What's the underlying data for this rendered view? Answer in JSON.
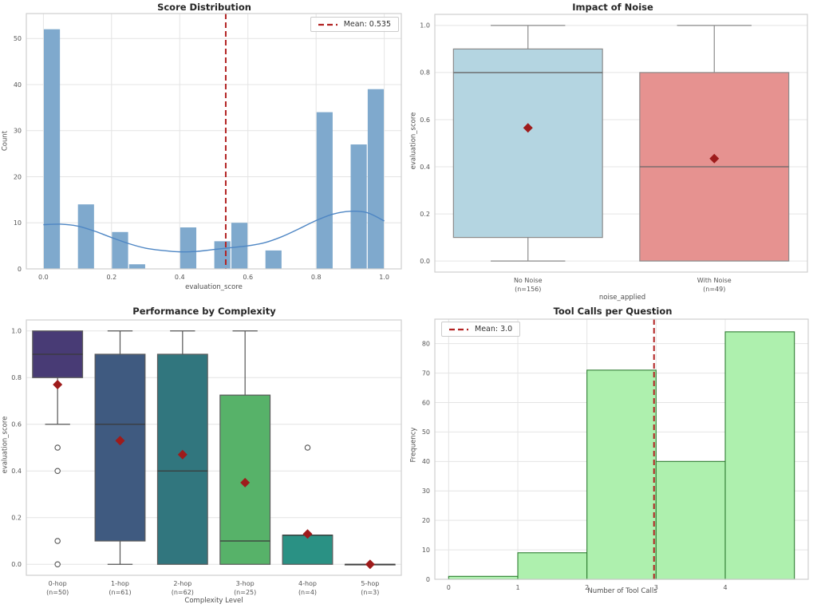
{
  "figure_background": "#ffffff",
  "chart_data": [
    {
      "type": "histogram",
      "title": "Score Distribution",
      "xlabel": "evaluation_score",
      "ylabel": "Count",
      "legend": {
        "label": "Mean: 0.535",
        "position": "upper right"
      },
      "mean_line_x": 0.535,
      "bin_width": 0.05,
      "bins": [
        {
          "x0": 0.0,
          "count": 52
        },
        {
          "x0": 0.1,
          "count": 14
        },
        {
          "x0": 0.2,
          "count": 8
        },
        {
          "x0": 0.25,
          "count": 1
        },
        {
          "x0": 0.4,
          "count": 9
        },
        {
          "x0": 0.5,
          "count": 6
        },
        {
          "x0": 0.55,
          "count": 10
        },
        {
          "x0": 0.65,
          "count": 4
        },
        {
          "x0": 0.8,
          "count": 34
        },
        {
          "x0": 0.9,
          "count": 27
        },
        {
          "x0": 0.95,
          "count": 39
        }
      ],
      "kde_points": [
        [
          0.0,
          9.6
        ],
        [
          0.05,
          9.7
        ],
        [
          0.1,
          9.3
        ],
        [
          0.15,
          8.2
        ],
        [
          0.2,
          6.8
        ],
        [
          0.25,
          5.5
        ],
        [
          0.3,
          4.5
        ],
        [
          0.35,
          4.0
        ],
        [
          0.4,
          3.7
        ],
        [
          0.45,
          3.8
        ],
        [
          0.5,
          4.2
        ],
        [
          0.55,
          4.6
        ],
        [
          0.6,
          5.0
        ],
        [
          0.65,
          5.7
        ],
        [
          0.7,
          7.0
        ],
        [
          0.75,
          8.7
        ],
        [
          0.8,
          10.5
        ],
        [
          0.85,
          11.9
        ],
        [
          0.9,
          12.5
        ],
        [
          0.95,
          12.2
        ],
        [
          1.0,
          10.4
        ]
      ],
      "xticks": [
        "0.0",
        "0.2",
        "0.4",
        "0.6",
        "0.8",
        "1.0"
      ],
      "yticks": [
        "0",
        "10",
        "20",
        "30",
        "40",
        "50"
      ],
      "xlim": [
        -0.05,
        1.05
      ],
      "ylim": [
        0,
        55.4
      ],
      "grid": "both",
      "colors": {
        "bar": "#7FA9CD",
        "kde": "#4E86C4",
        "mean_line": "#B22222"
      }
    },
    {
      "type": "boxplot",
      "title": "Impact of Noise",
      "xlabel": "noise_applied",
      "ylabel": "evaluation_score",
      "yticks": [
        "0.0",
        "0.2",
        "0.4",
        "0.6",
        "0.8",
        "1.0"
      ],
      "ylim": [
        -0.047,
        1.047
      ],
      "grid": "y",
      "categories": [
        {
          "label": "No Noise",
          "n_label": "(n=156)",
          "q1": 0.1,
          "median": 0.8,
          "q3": 0.9,
          "whisker_low": 0.0,
          "whisker_high": 1.0,
          "mean": 0.565,
          "outliers": [],
          "color": "#B4D5E1"
        },
        {
          "label": "With Noise",
          "n_label": "(n=49)",
          "q1": 0.0,
          "median": 0.4,
          "q3": 0.8,
          "whisker_low": 0.0,
          "whisker_high": 1.0,
          "mean": 0.435,
          "outliers": [],
          "color": "#E69290"
        }
      ],
      "colors": {
        "edge": "#8A8A8A",
        "median": "#666666",
        "whisker": "#8A8A8A",
        "mean_marker": "#9E1B1B",
        "outlier": "#555555"
      }
    },
    {
      "type": "boxplot",
      "title": "Performance by Complexity",
      "xlabel": "Complexity Level",
      "ylabel": "evaluation_score",
      "yticks": [
        "0.0",
        "0.2",
        "0.4",
        "0.6",
        "0.8",
        "1.0"
      ],
      "ylim": [
        -0.047,
        1.047
      ],
      "grid": "y",
      "categories": [
        {
          "label": "0-hop",
          "n_label": "(n=50)",
          "q1": 0.8,
          "median": 0.9,
          "q3": 1.0,
          "whisker_low": 0.6,
          "whisker_high": 1.0,
          "mean": 0.77,
          "outliers": [
            0.5,
            0.4,
            0.1,
            0.0
          ],
          "color": "#483B75"
        },
        {
          "label": "1-hop",
          "n_label": "(n=61)",
          "q1": 0.1,
          "median": 0.6,
          "q3": 0.9,
          "whisker_low": 0.0,
          "whisker_high": 1.0,
          "mean": 0.53,
          "outliers": [],
          "color": "#3F5A80"
        },
        {
          "label": "2-hop",
          "n_label": "(n=62)",
          "q1": 0.0,
          "median": 0.4,
          "q3": 0.9,
          "whisker_low": 0.0,
          "whisker_high": 1.0,
          "mean": 0.47,
          "outliers": [],
          "color": "#31767E"
        },
        {
          "label": "3-hop",
          "n_label": "(n=25)",
          "q1": 0.0,
          "median": 0.1,
          "q3": 0.725,
          "whisker_low": 0.0,
          "whisker_high": 1.0,
          "mean": 0.35,
          "outliers": [],
          "color": "#57B269"
        },
        {
          "label": "4-hop",
          "n_label": "(n=4)",
          "q1": 0.0,
          "median": 0.125,
          "q3": 0.125,
          "whisker_low": 0.0,
          "whisker_high": 0.125,
          "mean": 0.13,
          "outliers": [
            0.5
          ],
          "color": "#2A9184"
        },
        {
          "label": "5-hop",
          "n_label": "(n=3)",
          "q1": 0.0,
          "median": 0.0,
          "q3": 0.0,
          "whisker_low": 0.0,
          "whisker_high": 0.0,
          "mean": 0.0,
          "outliers": [],
          "color": "#2A9184"
        }
      ],
      "colors": {
        "edge": "#5A5A5A",
        "median": "#3A3A3A",
        "whisker": "#555555",
        "mean_marker": "#9E1B1B",
        "outlier": "#555555"
      }
    },
    {
      "type": "histogram",
      "title": "Tool Calls per Question",
      "xlabel": "Number of Tool Calls",
      "ylabel": "Frequency",
      "legend": {
        "label": "Mean: 3.0",
        "position": "upper left"
      },
      "mean_line_x": 2.97,
      "bin_width": 1,
      "bins": [
        {
          "x0": 0,
          "count": 1
        },
        {
          "x0": 1,
          "count": 9
        },
        {
          "x0": 2,
          "count": 71
        },
        {
          "x0": 3,
          "count": 40
        },
        {
          "x0": 4,
          "count": 84
        }
      ],
      "kde_points": [],
      "xticks": [
        "0",
        "1",
        "2",
        "3",
        "4"
      ],
      "yticks": [
        "0",
        "10",
        "20",
        "30",
        "40",
        "50",
        "60",
        "70",
        "80"
      ],
      "xlim": [
        -0.2,
        5.2
      ],
      "ylim": [
        0,
        88.3
      ],
      "grid": "both",
      "colors": {
        "bar": "#AEF0AE",
        "bar_edge": "#2F7D32",
        "mean_line": "#B22222"
      }
    }
  ]
}
